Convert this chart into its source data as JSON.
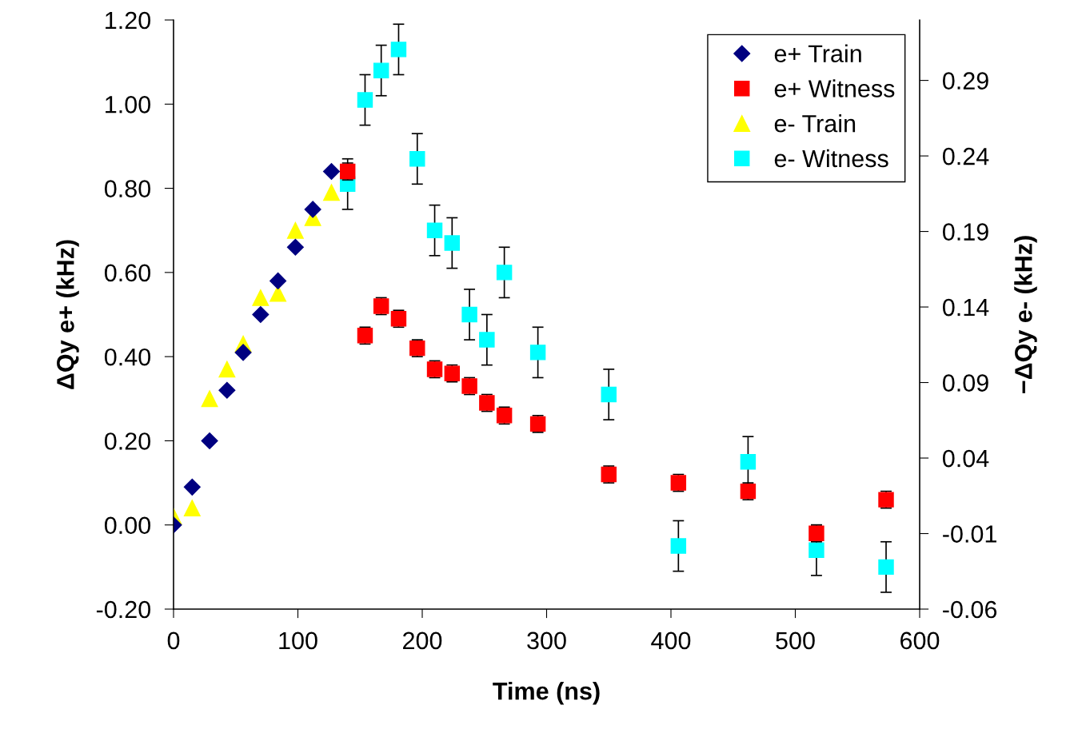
{
  "chart_data": {
    "type": "scatter",
    "xlabel": "Time (ns)",
    "ylabel": "ΔQy e+ (kHz)",
    "y2label": "−ΔQy e- (kHz)",
    "xlim": [
      0,
      600
    ],
    "xticks": [
      0,
      100,
      200,
      300,
      400,
      500,
      600
    ],
    "ylim": [
      -0.2,
      1.2
    ],
    "yticks": [
      {
        "value": -0.2,
        "label": "-0.20"
      },
      {
        "value": 0,
        "label": "0.00"
      },
      {
        "value": 0.2,
        "label": "0.20"
      },
      {
        "value": 0.4,
        "label": "0.40"
      },
      {
        "value": 0.6,
        "label": "0.60"
      },
      {
        "value": 0.8,
        "label": "0.80"
      },
      {
        "value": 1.0,
        "label": "1.00"
      },
      {
        "value": 1.2,
        "label": "1.20"
      }
    ],
    "y2lim": [
      -0.06,
      0.33
    ],
    "y2ticks": [
      -0.06,
      -0.01,
      0.04,
      0.09,
      0.14,
      0.19,
      0.24,
      0.29
    ],
    "grid": false,
    "legend": "top right",
    "series": [
      {
        "name": "e+ Train",
        "color": "#000080",
        "marker": "diamond",
        "x": [
          0,
          15,
          29,
          43,
          56,
          70,
          84,
          98,
          112,
          127
        ],
        "values": [
          0.0,
          0.09,
          0.2,
          0.32,
          0.41,
          0.5,
          0.58,
          0.66,
          0.75,
          0.84
        ]
      },
      {
        "name": "e+ Witness",
        "color": "#ff0000",
        "marker": "square",
        "x": [
          140,
          154,
          167,
          181,
          196,
          210,
          224,
          238,
          252,
          266,
          293,
          350,
          406,
          462,
          517,
          573
        ],
        "values": [
          0.84,
          0.45,
          0.52,
          0.49,
          0.42,
          0.37,
          0.36,
          0.33,
          0.29,
          0.26,
          0.24,
          0.12,
          0.1,
          0.08,
          -0.02,
          0.06
        ],
        "errors": [
          0.02,
          0.02,
          0.02,
          0.02,
          0.02,
          0.02,
          0.02,
          0.02,
          0.02,
          0.02,
          0.02,
          0.02,
          0.02,
          0.02,
          0.02,
          0.02
        ]
      },
      {
        "name": "e- Train",
        "color": "#ffff00",
        "marker": "triangle",
        "x": [
          0,
          15,
          29,
          43,
          56,
          70,
          84,
          98,
          112,
          127
        ],
        "values": [
          0.02,
          0.04,
          0.3,
          0.37,
          0.43,
          0.54,
          0.55,
          0.7,
          0.73,
          0.79
        ]
      },
      {
        "name": "e- Witness",
        "color": "#00ffff",
        "marker": "square",
        "x": [
          140,
          154,
          167,
          181,
          196,
          210,
          224,
          238,
          252,
          266,
          293,
          350,
          406,
          462,
          517,
          573
        ],
        "values": [
          0.81,
          1.01,
          1.08,
          1.13,
          0.87,
          0.7,
          0.67,
          0.5,
          0.44,
          0.6,
          0.41,
          0.31,
          -0.05,
          0.15,
          -0.06,
          -0.1
        ],
        "errors": [
          0.06,
          0.06,
          0.06,
          0.06,
          0.06,
          0.06,
          0.06,
          0.06,
          0.06,
          0.06,
          0.06,
          0.06,
          0.06,
          0.06,
          0.06,
          0.06
        ]
      }
    ]
  }
}
